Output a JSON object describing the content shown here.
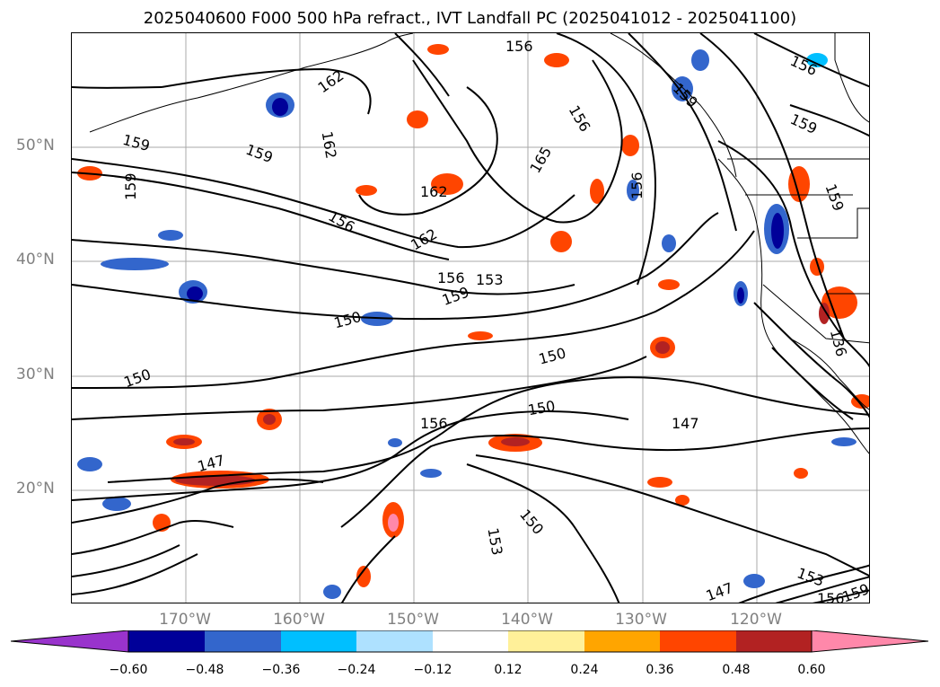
{
  "title": "2025040600 F000 500 hPa refract., IVT Landfall PC (2025041012 - 2025041100)",
  "lat_labels": [
    "50°N",
    "40°N",
    "30°N",
    "20°N"
  ],
  "lon_labels": [
    "170°W",
    "160°W",
    "150°W",
    "140°W",
    "130°W",
    "120°W"
  ],
  "colorbar": {
    "ticks": [
      "−0.60",
      "−0.48",
      "−0.36",
      "−0.24",
      "−0.12",
      "0.12",
      "0.24",
      "0.36",
      "0.48",
      "0.60"
    ],
    "colors": [
      "#9933cc",
      "#000099",
      "#3366cc",
      "#00bfff",
      "#aee1ff",
      "#ffffff",
      "#fff099",
      "#ffa500",
      "#ff4500",
      "#b22222",
      "#ff88aa"
    ]
  },
  "contour_labels": [
    "156",
    "162",
    "159",
    "159",
    "159",
    "162",
    "156",
    "162",
    "165",
    "156",
    "156",
    "159",
    "156",
    "159",
    "162",
    "153",
    "156",
    "159",
    "150",
    "150",
    "156",
    "150",
    "147",
    "147",
    "150",
    "153",
    "147",
    "150",
    "153",
    "156",
    "159",
    "136",
    "159"
  ]
}
